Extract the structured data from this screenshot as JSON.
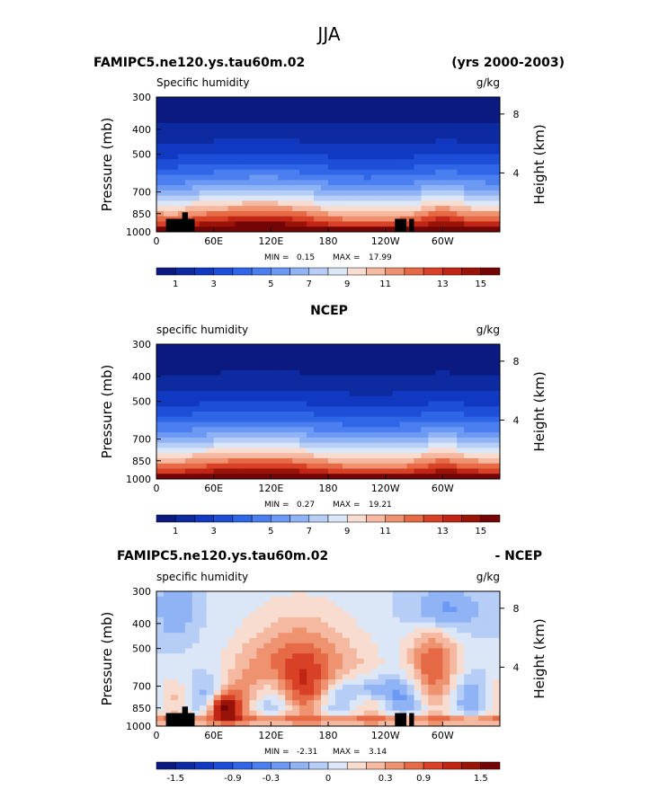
{
  "figure_title": "JJA",
  "chart_data": [
    {
      "type": "heatmap",
      "case_name": "FAMIPC5.ne120.ys.tau60m.02",
      "years": "(yrs 2000-2003)",
      "field_label": "Specific humidity",
      "units": "g/kg",
      "ylabel": "Pressure (mb)",
      "y2label": "Height (km)",
      "xticks": [
        "0",
        "60E",
        "120E",
        "180",
        "120W",
        "60W"
      ],
      "xtick_values": [
        0,
        60,
        120,
        180,
        240,
        300
      ],
      "xlim": [
        0,
        360
      ],
      "yticks": [
        "300",
        "400",
        "500",
        "700",
        "850",
        "1000"
      ],
      "ytick_values": [
        300,
        400,
        500,
        700,
        850,
        1000
      ],
      "ylim": [
        1000,
        300
      ],
      "y2ticks": [
        "8",
        "4"
      ],
      "y2tick_values": [
        8,
        4
      ],
      "min_label": "MIN =",
      "min_value": "0.15",
      "max_label": "MAX =",
      "max_value": "17.99",
      "colorbar_labels": [
        "1",
        "3",
        "5",
        "7",
        "9",
        "11",
        "13",
        "15"
      ],
      "colorbar_colors": [
        "#0a1a80",
        "#0d2aa0",
        "#1138c0",
        "#1d4ed8",
        "#2f66e8",
        "#4b7ff0",
        "#6b99f3",
        "#8fb3f5",
        "#b6cdf6",
        "#dbe6f7",
        "#f8dccf",
        "#f4b9a0",
        "#ee9270",
        "#e56a45",
        "#d84125",
        "#c02515",
        "#9a1309",
        "#730506"
      ],
      "data_low": 0.15,
      "data_high": 17.99
    },
    {
      "type": "heatmap",
      "case_name": "NCEP",
      "field_label": "specific humidity",
      "units": "g/kg",
      "ylabel": "Pressure (mb)",
      "y2label": "Height (km)",
      "xticks": [
        "0",
        "60E",
        "120E",
        "180",
        "120W",
        "60W"
      ],
      "xtick_values": [
        0,
        60,
        120,
        180,
        240,
        300
      ],
      "xlim": [
        0,
        360
      ],
      "yticks": [
        "300",
        "400",
        "500",
        "700",
        "850",
        "1000"
      ],
      "ytick_values": [
        300,
        400,
        500,
        700,
        850,
        1000
      ],
      "ylim": [
        1000,
        300
      ],
      "y2ticks": [
        "8",
        "4"
      ],
      "y2tick_values": [
        8,
        4
      ],
      "min_label": "MIN =",
      "min_value": "0.27",
      "max_label": "MAX =",
      "max_value": "19.21",
      "colorbar_labels": [
        "1",
        "3",
        "5",
        "7",
        "9",
        "11",
        "13",
        "15"
      ],
      "colorbar_colors": [
        "#0a1a80",
        "#0d2aa0",
        "#1138c0",
        "#1d4ed8",
        "#2f66e8",
        "#4b7ff0",
        "#6b99f3",
        "#8fb3f5",
        "#b6cdf6",
        "#dbe6f7",
        "#f8dccf",
        "#f4b9a0",
        "#ee9270",
        "#e56a45",
        "#d84125",
        "#c02515",
        "#9a1309",
        "#730506"
      ],
      "data_low": 0.27,
      "data_high": 19.21
    },
    {
      "type": "heatmap",
      "case_name": "FAMIPC5.ne120.ys.tau60m.02",
      "diff_label": "- NCEP",
      "field_label": "specific humidity",
      "units": "g/kg",
      "ylabel": "Pressure (mb)",
      "y2label": "Height (km)",
      "xticks": [
        "0",
        "60E",
        "120E",
        "180",
        "120W",
        "60W"
      ],
      "xtick_values": [
        0,
        60,
        120,
        180,
        240,
        300
      ],
      "xlim": [
        0,
        360
      ],
      "yticks": [
        "300",
        "400",
        "500",
        "700",
        "850",
        "1000"
      ],
      "ytick_values": [
        300,
        400,
        500,
        700,
        850,
        1000
      ],
      "ylim": [
        1000,
        300
      ],
      "y2ticks": [
        "8",
        "4"
      ],
      "y2tick_values": [
        8,
        4
      ],
      "min_label": "MIN =",
      "min_value": "-2.31",
      "max_label": "MAX =",
      "max_value": "3.14",
      "colorbar_labels": [
        "-1.5",
        "-0.9",
        "-0.3",
        "0",
        "0.3",
        "0.9",
        "1.5"
      ],
      "colorbar_colors": [
        "#0a1a80",
        "#0d2aa0",
        "#1138c0",
        "#1d4ed8",
        "#2f66e8",
        "#4b7ff0",
        "#6b99f3",
        "#8fb3f5",
        "#b6cdf6",
        "#dbe6f7",
        "#f8dccf",
        "#f4b9a0",
        "#ee9270",
        "#e56a45",
        "#d84125",
        "#c02515",
        "#9a1309",
        "#730506"
      ],
      "data_low": -2.31,
      "data_high": 3.14
    }
  ]
}
